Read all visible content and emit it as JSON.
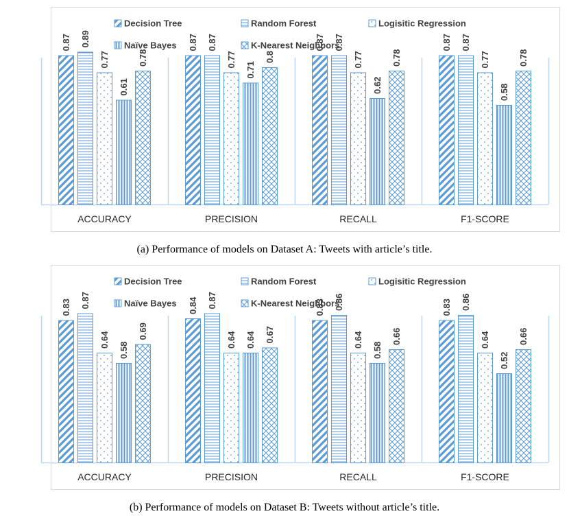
{
  "chart_data": [
    {
      "type": "bar",
      "categories": [
        "ACCURACY",
        "PRECISION",
        "RECALL",
        "F1-SCORE"
      ],
      "series": [
        {
          "name": "Decision Tree",
          "values": [
            0.87,
            0.87,
            0.87,
            0.87
          ],
          "labels": [
            "0.87",
            "0.87",
            "0.87",
            "0.87"
          ]
        },
        {
          "name": "Random Forest",
          "values": [
            0.89,
            0.87,
            0.87,
            0.87
          ],
          "labels": [
            "0.89",
            "0.87",
            "0.87",
            "0.87"
          ]
        },
        {
          "name": "Logisitic Regression",
          "values": [
            0.77,
            0.77,
            0.77,
            0.77
          ],
          "labels": [
            "0.77",
            "0.77",
            "0.77",
            "0.77"
          ]
        },
        {
          "name": "Naïve Bayes",
          "values": [
            0.61,
            0.71,
            0.62,
            0.58
          ],
          "labels": [
            "0.61",
            "0.71",
            "0.62",
            "0.58"
          ]
        },
        {
          "name": "K-Nearest Neighbors",
          "values": [
            0.78,
            0.8,
            0.78,
            0.78
          ],
          "labels": [
            "0.78",
            "0.8",
            "0.78",
            "0.78"
          ]
        }
      ],
      "title": "",
      "caption": "(a) Performance of models on Dataset A: Tweets with article’s title.",
      "xlabel": "",
      "ylabel": "",
      "ylim": [
        0,
        1
      ],
      "grid": false,
      "legend": "top"
    },
    {
      "type": "bar",
      "categories": [
        "ACCURACY",
        "PRECISION",
        "RECALL",
        "F1-SCORE"
      ],
      "series": [
        {
          "name": "Decision Tree",
          "values": [
            0.83,
            0.84,
            0.83,
            0.83
          ],
          "labels": [
            "0.83",
            "0.84",
            "0.83",
            "0.83"
          ]
        },
        {
          "name": "Random Forest",
          "values": [
            0.87,
            0.87,
            0.86,
            0.86
          ],
          "labels": [
            "0.87",
            "0.87",
            "0.86",
            "0.86"
          ]
        },
        {
          "name": "Logisitic Regression",
          "values": [
            0.64,
            0.64,
            0.64,
            0.64
          ],
          "labels": [
            "0.64",
            "0.64",
            "0.64",
            "0.64"
          ]
        },
        {
          "name": "Naïve Bayes",
          "values": [
            0.58,
            0.64,
            0.58,
            0.52
          ],
          "labels": [
            "0.58",
            "0.64",
            "0.58",
            "0.52"
          ]
        },
        {
          "name": "K-Nearest Neighbors",
          "values": [
            0.69,
            0.67,
            0.66,
            0.66
          ],
          "labels": [
            "0.69",
            "0.67",
            "0.66",
            "0.66"
          ]
        }
      ],
      "title": "",
      "caption": "(b) Performance of models on Dataset B: Tweets without article’s title.",
      "xlabel": "",
      "ylabel": "",
      "ylim": [
        0,
        1
      ],
      "grid": false,
      "legend": "top"
    }
  ],
  "colors": {
    "bar_stroke": "#5b9bd5",
    "frame": "#d9d9d9",
    "axis": "#bdd7ee"
  }
}
